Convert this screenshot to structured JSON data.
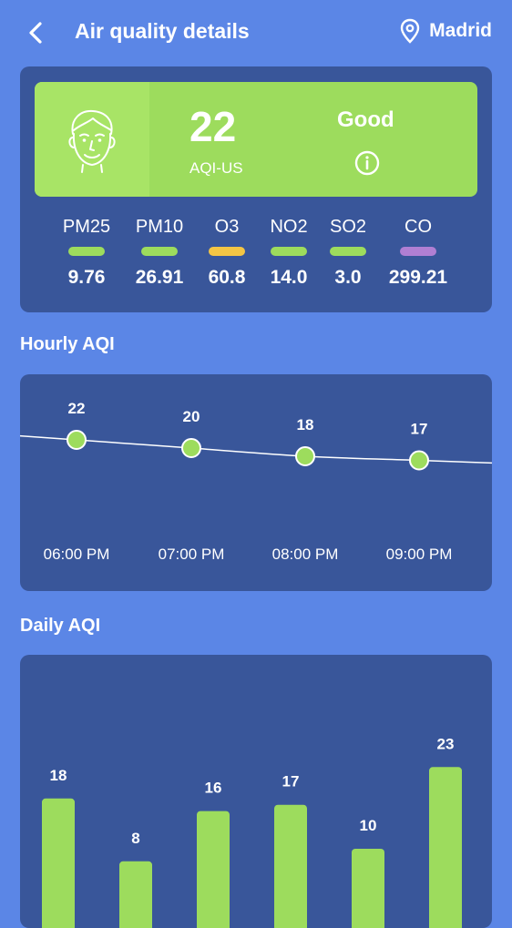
{
  "header": {
    "title": "Air quality details",
    "location": "Madrid"
  },
  "summary": {
    "aqi_value": "22",
    "aqi_scale": "AQI-US",
    "status": "Good",
    "pollutants": [
      {
        "name": "PM25",
        "value": "9.76",
        "color": "#9ddc5d"
      },
      {
        "name": "PM10",
        "value": "26.91",
        "color": "#9ddc5d"
      },
      {
        "name": "O3",
        "value": "60.8",
        "color": "#f4c544"
      },
      {
        "name": "NO2",
        "value": "14.0",
        "color": "#9ddc5d"
      },
      {
        "name": "SO2",
        "value": "3.0",
        "color": "#9ddc5d"
      },
      {
        "name": "CO",
        "value": "299.21",
        "color": "#b07fd3"
      }
    ]
  },
  "hourly": {
    "title": "Hourly AQI",
    "chart_data": {
      "type": "line",
      "categories": [
        "06:00 PM",
        "07:00 PM",
        "08:00 PM",
        "09:00 PM"
      ],
      "values": [
        22,
        20,
        18,
        17
      ]
    }
  },
  "daily": {
    "title": "Daily AQI",
    "chart_data": {
      "type": "bar",
      "values": [
        18,
        8,
        16,
        17,
        10,
        23
      ]
    }
  },
  "colors": {
    "background": "#5b86e6",
    "card": "#39569a",
    "good_green": "#9ddc5d"
  }
}
